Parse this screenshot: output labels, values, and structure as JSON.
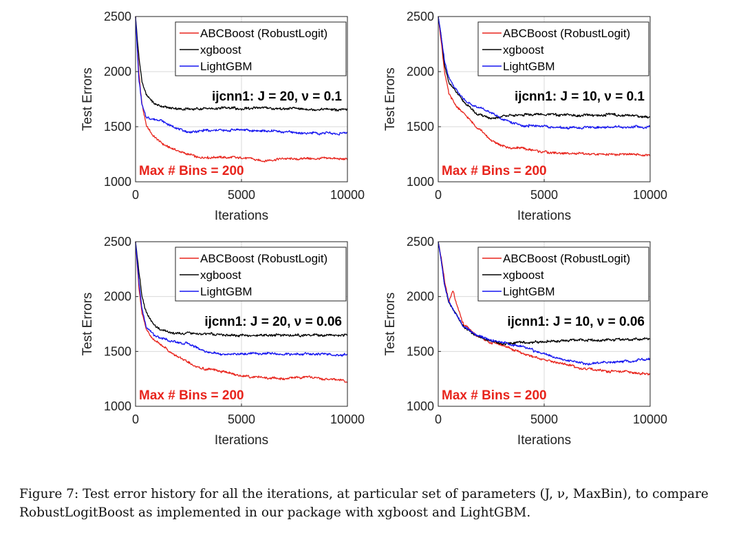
{
  "colors": {
    "red": "#e8241c",
    "black": "#000000",
    "blue": "#1515f0",
    "grid": "#d9d9d9",
    "bins_text": "#e8241c"
  },
  "caption": {
    "label": "Figure 7:",
    "text": "Test error history for all the iterations, at particular set of parameters (J, ν, MaxBin), to compare RobustLogitBoost as implemented in our package with xgboost and LightGBM."
  },
  "chart_data": [
    {
      "type": "line",
      "title": "ijcnn1: J = 20, ν = 0.1",
      "annotation": "Max # Bins =  200",
      "xlabel": "Iterations",
      "ylabel": "Test Errors",
      "xlim": [
        0,
        10000
      ],
      "ylim": [
        1000,
        2500
      ],
      "xticks": [
        "0",
        "5000",
        "10000"
      ],
      "yticks": [
        "1000",
        "1500",
        "2000",
        "2500"
      ],
      "grid": true,
      "legend_position": "top-right",
      "series": [
        {
          "name": "ABCBoost (RobustLogit)",
          "color": "red",
          "x": [
            0,
            150,
            300,
            500,
            800,
            1200,
            1800,
            2500,
            3000,
            4000,
            5000,
            6000,
            7000,
            8000,
            9000,
            10000
          ],
          "y": [
            2500,
            2000,
            1720,
            1520,
            1420,
            1350,
            1290,
            1250,
            1215,
            1220,
            1225,
            1190,
            1205,
            1210,
            1210,
            1200
          ]
        },
        {
          "name": "xgboost",
          "color": "black",
          "x": [
            0,
            150,
            300,
            500,
            800,
            1200,
            1800,
            2500,
            3000,
            4000,
            5000,
            6000,
            7000,
            8000,
            9000,
            10000
          ],
          "y": [
            2500,
            2150,
            1920,
            1790,
            1720,
            1690,
            1670,
            1660,
            1665,
            1670,
            1665,
            1670,
            1665,
            1660,
            1655,
            1655
          ]
        },
        {
          "name": "LightGBM",
          "color": "blue",
          "x": [
            0,
            150,
            300,
            500,
            800,
            1200,
            1800,
            2500,
            3000,
            4000,
            5000,
            6000,
            7000,
            8000,
            9000,
            10000
          ],
          "y": [
            2500,
            1950,
            1700,
            1580,
            1570,
            1560,
            1500,
            1455,
            1460,
            1470,
            1470,
            1465,
            1455,
            1445,
            1440,
            1440
          ]
        }
      ]
    },
    {
      "type": "line",
      "title": "ijcnn1: J = 10, ν = 0.1",
      "annotation": "Max # Bins =  200",
      "xlabel": "Iterations",
      "ylabel": "Test Errors",
      "xlim": [
        0,
        10000
      ],
      "ylim": [
        1000,
        2500
      ],
      "xticks": [
        "0",
        "5000",
        "10000"
      ],
      "yticks": [
        "1000",
        "1500",
        "2000",
        "2500"
      ],
      "grid": true,
      "legend_position": "top-right",
      "series": [
        {
          "name": "ABCBoost (RobustLogit)",
          "color": "red",
          "x": [
            0,
            150,
            300,
            500,
            800,
            1200,
            1800,
            2500,
            3000,
            4000,
            5000,
            6000,
            7000,
            8000,
            9000,
            10000
          ],
          "y": [
            2500,
            2250,
            2000,
            1800,
            1700,
            1620,
            1500,
            1380,
            1320,
            1300,
            1270,
            1260,
            1250,
            1250,
            1250,
            1245
          ]
        },
        {
          "name": "xgboost",
          "color": "black",
          "x": [
            0,
            150,
            300,
            500,
            800,
            1200,
            1800,
            2500,
            3000,
            4000,
            5000,
            6000,
            7000,
            8000,
            9000,
            10000
          ],
          "y": [
            2500,
            2300,
            2050,
            1900,
            1820,
            1720,
            1620,
            1570,
            1590,
            1610,
            1610,
            1610,
            1600,
            1610,
            1600,
            1590
          ]
        },
        {
          "name": "LightGBM",
          "color": "blue",
          "x": [
            0,
            150,
            300,
            500,
            800,
            1200,
            1800,
            2500,
            3000,
            4000,
            5000,
            6000,
            7000,
            8000,
            9000,
            10000
          ],
          "y": [
            2500,
            2300,
            2100,
            1950,
            1850,
            1750,
            1680,
            1630,
            1570,
            1510,
            1500,
            1490,
            1490,
            1495,
            1500,
            1495
          ]
        }
      ]
    },
    {
      "type": "line",
      "title": "ijcnn1: J = 20, ν = 0.06",
      "annotation": "Max # Bins =  200",
      "xlabel": "Iterations",
      "ylabel": "Test Errors",
      "xlim": [
        0,
        10000
      ],
      "ylim": [
        1000,
        2500
      ],
      "xticks": [
        "0",
        "5000",
        "10000"
      ],
      "yticks": [
        "1000",
        "1500",
        "2000",
        "2500"
      ],
      "grid": true,
      "legend_position": "top-right",
      "series": [
        {
          "name": "ABCBoost (RobustLogit)",
          "color": "red",
          "x": [
            0,
            150,
            300,
            500,
            800,
            1200,
            1800,
            2500,
            3000,
            4000,
            5000,
            6000,
            7000,
            8000,
            9000,
            10000
          ],
          "y": [
            2500,
            2100,
            1850,
            1700,
            1620,
            1560,
            1470,
            1400,
            1350,
            1320,
            1280,
            1260,
            1250,
            1270,
            1250,
            1225
          ]
        },
        {
          "name": "xgboost",
          "color": "black",
          "x": [
            0,
            150,
            300,
            500,
            800,
            1200,
            1800,
            2500,
            3000,
            4000,
            5000,
            6000,
            7000,
            8000,
            9000,
            10000
          ],
          "y": [
            2500,
            2250,
            2000,
            1860,
            1760,
            1700,
            1670,
            1665,
            1665,
            1655,
            1645,
            1645,
            1650,
            1645,
            1645,
            1645
          ]
        },
        {
          "name": "LightGBM",
          "color": "blue",
          "x": [
            0,
            150,
            300,
            500,
            800,
            1200,
            1800,
            2500,
            3000,
            4000,
            5000,
            6000,
            7000,
            8000,
            9000,
            10000
          ],
          "y": [
            2500,
            2150,
            1900,
            1720,
            1660,
            1620,
            1590,
            1570,
            1520,
            1470,
            1480,
            1480,
            1475,
            1480,
            1470,
            1470
          ]
        }
      ]
    },
    {
      "type": "line",
      "title": "ijcnn1: J = 10, ν = 0.06",
      "annotation": "Max # Bins =  200",
      "xlabel": "Iterations",
      "ylabel": "Test Errors",
      "xlim": [
        0,
        10000
      ],
      "ylim": [
        1000,
        2500
      ],
      "xticks": [
        "0",
        "5000",
        "10000"
      ],
      "yticks": [
        "1000",
        "1500",
        "2000",
        "2500"
      ],
      "grid": true,
      "legend_position": "top-right",
      "series": [
        {
          "name": "ABCBoost (RobustLogit)",
          "color": "red",
          "x": [
            0,
            150,
            300,
            500,
            700,
            900,
            1200,
            1800,
            2500,
            3000,
            4000,
            5000,
            6000,
            7000,
            8000,
            9000,
            10000
          ],
          "y": [
            2500,
            2350,
            2150,
            1950,
            2060,
            1900,
            1750,
            1650,
            1580,
            1560,
            1480,
            1420,
            1380,
            1340,
            1320,
            1310,
            1290
          ]
        },
        {
          "name": "xgboost",
          "color": "black",
          "x": [
            0,
            150,
            300,
            500,
            800,
            1200,
            1800,
            2500,
            3000,
            4000,
            5000,
            6000,
            7000,
            8000,
            9000,
            10000
          ],
          "y": [
            2500,
            2320,
            2100,
            1950,
            1850,
            1720,
            1640,
            1600,
            1570,
            1580,
            1590,
            1600,
            1600,
            1605,
            1610,
            1615
          ]
        },
        {
          "name": "LightGBM",
          "color": "blue",
          "x": [
            0,
            150,
            300,
            500,
            800,
            1200,
            1800,
            2500,
            3000,
            4000,
            5000,
            6000,
            7000,
            8000,
            9000,
            10000
          ],
          "y": [
            2500,
            2320,
            2100,
            1950,
            1850,
            1730,
            1650,
            1600,
            1580,
            1540,
            1480,
            1420,
            1390,
            1400,
            1410,
            1430
          ]
        }
      ]
    }
  ]
}
